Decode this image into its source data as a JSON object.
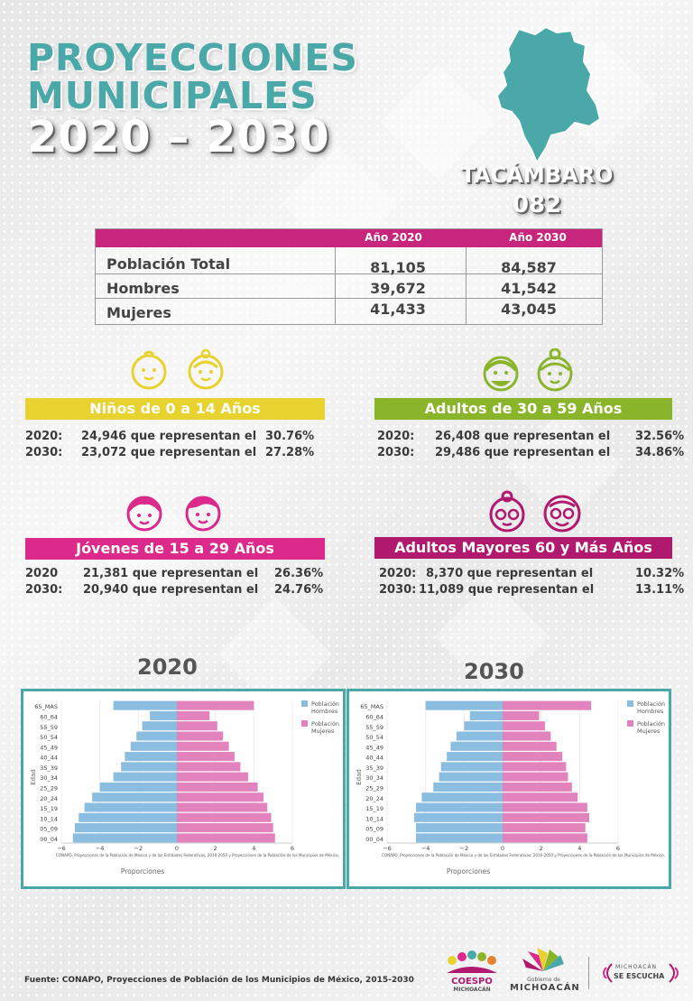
{
  "title": {
    "line1": "PROYECCIONES",
    "line2": "MUNICIPALES",
    "line3": "2020 – 2030"
  },
  "municipio": {
    "name": "TACÁMBARO",
    "code": "082",
    "map_color": "#4aa9a8"
  },
  "summary": {
    "headers": [
      "Año 2020",
      "Año 2030"
    ],
    "rows": [
      {
        "label": "Población Total",
        "v2020": "81,105",
        "v2030": "84,587"
      },
      {
        "label": "Hombres",
        "v2020": "39,672",
        "v2030": "41,542"
      },
      {
        "label": "Mujeres",
        "v2020": "41,433",
        "v2030": "43,045"
      }
    ]
  },
  "groups": {
    "ninos": {
      "label": "Niños de 0 a 14 Años",
      "color": "#e8d22f",
      "rows": [
        {
          "year": "2020:",
          "value": "24,946 que representan el",
          "pct": "30.76%"
        },
        {
          "year": "2030:",
          "value": "23,072 que representan el",
          "pct": "27.28%"
        }
      ]
    },
    "adultos": {
      "label": "Adultos de 30 a 59 Años",
      "color": "#8ab52a",
      "rows": [
        {
          "year": "2020:",
          "value": "26,408 que representan el",
          "pct": "32.56%"
        },
        {
          "year": "2030:",
          "value": "29,486 que representan el",
          "pct": "34.86%"
        }
      ]
    },
    "jovenes": {
      "label": "Jóvenes de 15 a 29 Años",
      "color": "#db2a8b",
      "rows": [
        {
          "year": "2020",
          "value": "21,381 que representan el",
          "pct": "26.36%"
        },
        {
          "year": "2030:",
          "value": "20,940 que representan el",
          "pct": "24.76%"
        }
      ]
    },
    "mayores": {
      "label": "Adultos Mayores  60 y Más Años",
      "color": "#b0196e",
      "rows": [
        {
          "year": "2020:",
          "value": "8,370 que representan el",
          "pct": "10.32%"
        },
        {
          "year": "2030:",
          "value": "11,089 que representan el",
          "pct": "13.11%"
        }
      ]
    }
  },
  "pyramid_titles": {
    "p2020": "2020",
    "p2030": "2030"
  },
  "chart_data": [
    {
      "type": "bar",
      "orientation": "horizontal",
      "year": "2020",
      "categories": [
        "65_MAS",
        "60_64",
        "55_59",
        "50_54",
        "45_49",
        "40_44",
        "35_39",
        "30_34",
        "25_29",
        "20_24",
        "15_19",
        "10_14",
        "05_09",
        "00_04"
      ],
      "series": [
        {
          "name": "Población Hombres",
          "color": "#8bbde0",
          "values": [
            -3.3,
            -1.4,
            -1.8,
            -2.1,
            -2.4,
            -2.7,
            -2.9,
            -3.3,
            -4.0,
            -4.4,
            -4.8,
            -5.1,
            -5.3,
            -5.4
          ]
        },
        {
          "name": "Población Mujeres",
          "color": "#e283bd",
          "values": [
            4.0,
            1.7,
            2.1,
            2.4,
            2.7,
            3.0,
            3.3,
            3.7,
            4.2,
            4.5,
            4.7,
            4.9,
            5.0,
            5.1
          ]
        }
      ],
      "ylabel": "Edad",
      "xlabel": "Proporciones",
      "xticks": [
        "−6",
        "−4",
        "−2",
        "0",
        "2",
        "4",
        "6"
      ],
      "xlim": [
        -6,
        6
      ],
      "source_note": "CONAPO, Proyecciones de la Población de México y de las Entidades Federativas, 2016-2050 y Proyecciones de la Población de los Municipios de México,",
      "legend_position": "top-right"
    },
    {
      "type": "bar",
      "orientation": "horizontal",
      "year": "2030",
      "categories": [
        "65_MAS",
        "60_64",
        "55_59",
        "50_54",
        "45_49",
        "40_44",
        "35_39",
        "30_34",
        "25_29",
        "20_24",
        "15_19",
        "10_14",
        "05_09",
        "00_04"
      ],
      "series": [
        {
          "name": "Población Hombres",
          "color": "#8bbde0",
          "values": [
            -4.0,
            -1.7,
            -2.0,
            -2.4,
            -2.7,
            -2.9,
            -3.2,
            -3.3,
            -3.6,
            -4.2,
            -4.5,
            -4.6,
            -4.5,
            -4.5
          ]
        },
        {
          "name": "Población Mujeres",
          "color": "#e283bd",
          "values": [
            4.6,
            1.9,
            2.2,
            2.5,
            2.8,
            3.1,
            3.3,
            3.4,
            3.6,
            3.9,
            4.4,
            4.5,
            4.3,
            4.4
          ]
        }
      ],
      "ylabel": "Edad",
      "xlabel": "Proporciones",
      "xticks": [
        "−6",
        "−4",
        "−2",
        "0",
        "2",
        "4",
        "6"
      ],
      "xlim": [
        -6,
        6
      ],
      "source_note": "CONAPO, Proyecciones de la Población de México y de las Entidades Federativas, 2016-2050 y Proyecciones de la Población de los Municipios de México,",
      "legend_position": "top-right"
    }
  ],
  "legend_lines": {
    "hombres": [
      "Población",
      "Hombres"
    ],
    "mujeres": [
      "Población",
      "Mujeres"
    ]
  },
  "footer": {
    "source": "Fuente: CONAPO, Proyecciones de Población de los Municipios de México, 2015-2030",
    "logo_coespo": [
      "COESPO",
      "MICHOACÁN"
    ],
    "logo_gobierno": [
      "Gobierno de",
      "MICHOACÁN"
    ],
    "logo_escucha": [
      "MICHOACÁN",
      "SE ESCUCHA"
    ]
  }
}
